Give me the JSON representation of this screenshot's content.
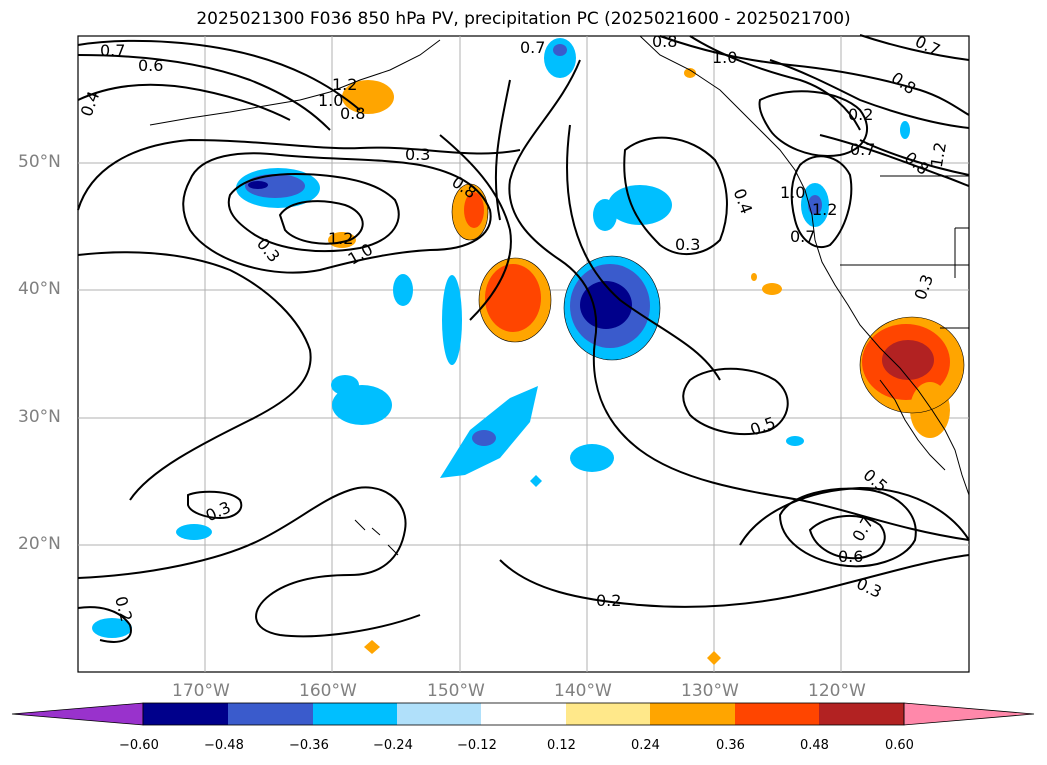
{
  "title": "2025021300 F036 850 hPa PV, precipitation PC (2025021600 - 2025021700)",
  "lat_labels": [
    "50°N",
    "40°N",
    "30°N",
    "20°N"
  ],
  "lon_labels": [
    "170°W",
    "160°W",
    "150°W",
    "140°W",
    "130°W",
    "120°W"
  ],
  "contour_labels": [
    "0.7",
    "0.6",
    "0.4",
    "1.2",
    "1.0",
    "0.8",
    "0.7",
    "0.8",
    "1.0",
    "0.8",
    "0.7",
    "0.8",
    "1.2",
    "0.7",
    "1.0",
    "0.2",
    "0.7",
    "1.2",
    "0.4",
    "0.3",
    "0.3",
    "0.8",
    "1.2",
    "1.0",
    "0.3",
    "0.5",
    "0.3",
    "0.7",
    "0.5",
    "0.6",
    "0.3",
    "0.2",
    "0.3",
    "0.2"
  ],
  "colorbar": {
    "ticks": [
      "−0.60",
      "−0.48",
      "−0.36",
      "−0.24",
      "−0.12",
      "0.12",
      "0.24",
      "0.36",
      "0.48",
      "0.60"
    ],
    "colors": [
      "#9932cc",
      "#00008b",
      "#3a5bcc",
      "#00bfff",
      "#b0e0fa",
      "#ffffff",
      "#ffe88a",
      "#ffa500",
      "#ff4500",
      "#b22222",
      "#ff88aa"
    ]
  }
}
